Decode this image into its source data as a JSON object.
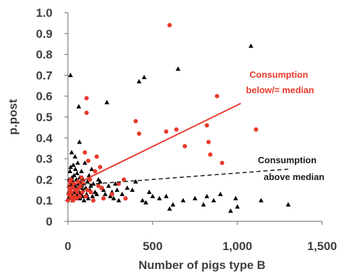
{
  "chart_data": {
    "type": "scatter",
    "xlabel": "Number of pigs type B",
    "ylabel": "p.post",
    "xlim": [
      0,
      1500
    ],
    "ylim": [
      0,
      1.0
    ],
    "x_ticks": [
      "0",
      "500",
      "1,000",
      "1,500"
    ],
    "y_ticks": [
      "0",
      "0.1",
      "0.2",
      "0.3",
      "0.4",
      "0.5",
      "0.6",
      "0.7",
      "0.8",
      "0.9",
      "1.0"
    ],
    "grid": false,
    "annotations": [
      {
        "text_lines": [
          "Consumption",
          "below/= median"
        ],
        "color": "#e8392b"
      },
      {
        "text_lines": [
          "Consumption",
          "above median"
        ],
        "color": "#1a1a1a"
      }
    ],
    "series": [
      {
        "marker": "circle",
        "color": "#e8392b",
        "trendline": {
          "x": [
            0,
            1020
          ],
          "y": [
            0.16,
            0.565
          ],
          "style": "solid"
        },
        "points": [
          [
            0,
            0.1
          ],
          [
            5,
            0.13
          ],
          [
            8,
            0.17
          ],
          [
            10,
            0.15
          ],
          [
            12,
            0.19
          ],
          [
            15,
            0.12
          ],
          [
            18,
            0.2
          ],
          [
            20,
            0.14
          ],
          [
            25,
            0.11
          ],
          [
            28,
            0.16
          ],
          [
            30,
            0.1
          ],
          [
            35,
            0.18
          ],
          [
            40,
            0.12
          ],
          [
            45,
            0.15
          ],
          [
            50,
            0.11
          ],
          [
            55,
            0.14
          ],
          [
            60,
            0.19
          ],
          [
            65,
            0.16
          ],
          [
            70,
            0.12
          ],
          [
            75,
            0.17
          ],
          [
            80,
            0.21
          ],
          [
            85,
            0.14
          ],
          [
            90,
            0.18
          ],
          [
            100,
            0.33
          ],
          [
            105,
            0.12
          ],
          [
            110,
            0.59
          ],
          [
            110,
            0.52
          ],
          [
            115,
            0.15
          ],
          [
            120,
            0.29
          ],
          [
            130,
            0.2
          ],
          [
            135,
            0.14
          ],
          [
            150,
            0.1
          ],
          [
            160,
            0.24
          ],
          [
            170,
            0.31
          ],
          [
            180,
            0.17
          ],
          [
            190,
            0.26
          ],
          [
            200,
            0.16
          ],
          [
            210,
            0.11
          ],
          [
            260,
            0.13
          ],
          [
            300,
            0.18
          ],
          [
            330,
            0.2
          ],
          [
            340,
            0.11
          ],
          [
            400,
            0.48
          ],
          [
            420,
            0.42
          ],
          [
            580,
            0.43
          ],
          [
            600,
            0.94
          ],
          [
            640,
            0.44
          ],
          [
            690,
            0.36
          ],
          [
            820,
            0.46
          ],
          [
            830,
            0.38
          ],
          [
            840,
            0.32
          ],
          [
            880,
            0.6
          ],
          [
            910,
            0.28
          ],
          [
            1110,
            0.44
          ]
        ]
      },
      {
        "marker": "triangle",
        "color": "#000000",
        "trendline": {
          "x": [
            0,
            1300
          ],
          "y": [
            0.17,
            0.25
          ],
          "style": "dashed"
        },
        "points": [
          [
            2,
            0.11
          ],
          [
            4,
            0.14
          ],
          [
            6,
            0.17
          ],
          [
            8,
            0.2
          ],
          [
            10,
            0.12
          ],
          [
            12,
            0.24
          ],
          [
            14,
            0.15
          ],
          [
            15,
            0.7
          ],
          [
            16,
            0.26
          ],
          [
            18,
            0.18
          ],
          [
            20,
            0.13
          ],
          [
            22,
            0.33
          ],
          [
            24,
            0.21
          ],
          [
            26,
            0.16
          ],
          [
            28,
            0.1
          ],
          [
            30,
            0.19
          ],
          [
            32,
            0.27
          ],
          [
            34,
            0.12
          ],
          [
            36,
            0.22
          ],
          [
            38,
            0.14
          ],
          [
            40,
            0.17
          ],
          [
            42,
            0.31
          ],
          [
            44,
            0.25
          ],
          [
            46,
            0.11
          ],
          [
            48,
            0.15
          ],
          [
            50,
            0.2
          ],
          [
            52,
            0.13
          ],
          [
            54,
            0.23
          ],
          [
            56,
            0.16
          ],
          [
            58,
            0.28
          ],
          [
            60,
            0.12
          ],
          [
            62,
            0.18
          ],
          [
            64,
            0.55
          ],
          [
            66,
            0.14
          ],
          [
            68,
            0.38
          ],
          [
            70,
            0.21
          ],
          [
            72,
            0.11
          ],
          [
            74,
            0.16
          ],
          [
            76,
            0.19
          ],
          [
            78,
            0.13
          ],
          [
            80,
            0.24
          ],
          [
            82,
            0.17
          ],
          [
            85,
            0.12
          ],
          [
            88,
            0.15
          ],
          [
            90,
            0.2
          ],
          [
            95,
            0.1
          ],
          [
            100,
            0.28
          ],
          [
            105,
            0.16
          ],
          [
            110,
            0.13
          ],
          [
            115,
            0.19
          ],
          [
            120,
            0.11
          ],
          [
            125,
            0.22
          ],
          [
            130,
            0.15
          ],
          [
            135,
            0.17
          ],
          [
            140,
            0.25
          ],
          [
            145,
            0.12
          ],
          [
            150,
            0.18
          ],
          [
            160,
            0.14
          ],
          [
            170,
            0.13
          ],
          [
            180,
            0.2
          ],
          [
            190,
            0.19
          ],
          [
            200,
            0.16
          ],
          [
            210,
            0.15
          ],
          [
            220,
            0.13
          ],
          [
            230,
            0.57
          ],
          [
            240,
            0.17
          ],
          [
            250,
            0.12
          ],
          [
            260,
            0.14
          ],
          [
            270,
            0.11
          ],
          [
            280,
            0.18
          ],
          [
            290,
            0.15
          ],
          [
            300,
            0.1
          ],
          [
            320,
            0.13
          ],
          [
            350,
            0.16
          ],
          [
            380,
            0.15
          ],
          [
            400,
            0.19
          ],
          [
            420,
            0.67
          ],
          [
            440,
            0.1
          ],
          [
            450,
            0.69
          ],
          [
            460,
            0.09
          ],
          [
            480,
            0.14
          ],
          [
            500,
            0.12
          ],
          [
            540,
            0.11
          ],
          [
            580,
            0.12
          ],
          [
            600,
            0.06
          ],
          [
            620,
            0.08
          ],
          [
            650,
            0.73
          ],
          [
            680,
            0.1
          ],
          [
            750,
            0.11
          ],
          [
            800,
            0.08
          ],
          [
            820,
            0.12
          ],
          [
            860,
            0.1
          ],
          [
            900,
            0.13
          ],
          [
            960,
            0.05
          ],
          [
            990,
            0.11
          ],
          [
            1000,
            0.07
          ],
          [
            1080,
            0.84
          ],
          [
            1140,
            0.1
          ],
          [
            1300,
            0.08
          ]
        ]
      }
    ]
  }
}
